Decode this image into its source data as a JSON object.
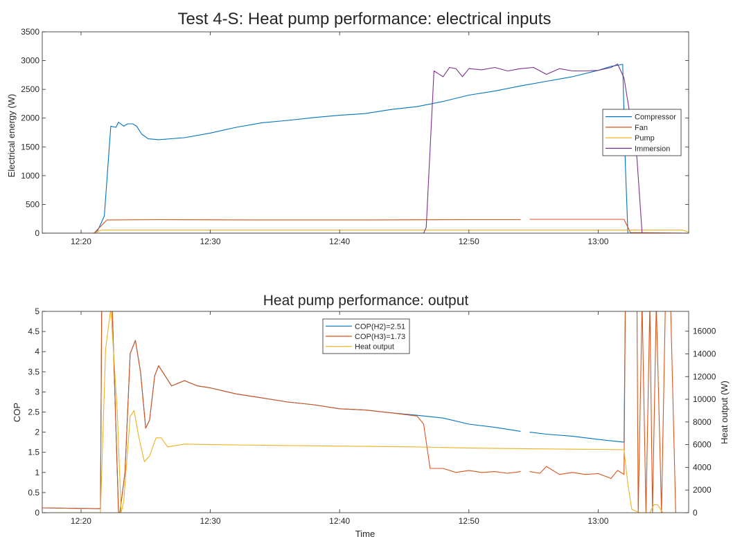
{
  "chart_data": [
    {
      "type": "line",
      "title": "Test 4-S: Heat pump performance: electrical inputs",
      "xlabel": "",
      "ylabel": "Electrical energy (W)",
      "x_unit": "time (HH:MM)",
      "xlim": [
        "12:17",
        "13:07"
      ],
      "ylim": [
        0,
        3500
      ],
      "xticks": [
        "12:20",
        "12:30",
        "12:40",
        "12:50",
        "13:00"
      ],
      "yticks": [
        0,
        500,
        1000,
        1500,
        2000,
        2500,
        3000,
        3500
      ],
      "grid": false,
      "legend_position": "right",
      "series": [
        {
          "name": "Compressor",
          "color": "#0072BD",
          "points": [
            [
              "12:17",
              0
            ],
            [
              "12:21",
              0
            ],
            [
              "12:21.3",
              50
            ],
            [
              "12:21.8",
              300
            ],
            [
              "12:22.3",
              1860
            ],
            [
              "12:22.7",
              1840
            ],
            [
              "12:22.9",
              1930
            ],
            [
              "12:23.3",
              1860
            ],
            [
              "12:23.6",
              1900
            ],
            [
              "12:24",
              1900
            ],
            [
              "12:24.3",
              1860
            ],
            [
              "12:24.7",
              1720
            ],
            [
              "12:25.2",
              1640
            ],
            [
              "12:26",
              1625
            ],
            [
              "12:28",
              1660
            ],
            [
              "12:30",
              1740
            ],
            [
              "12:32",
              1840
            ],
            [
              "12:34",
              1920
            ],
            [
              "12:36",
              1960
            ],
            [
              "12:38",
              2010
            ],
            [
              "12:40",
              2050
            ],
            [
              "12:42",
              2080
            ],
            [
              "12:44",
              2150
            ],
            [
              "12:46",
              2200
            ],
            [
              "12:48",
              2290
            ],
            [
              "12:50",
              2400
            ],
            [
              "12:52",
              2470
            ],
            [
              "12:54",
              2560
            ],
            [
              "12:56",
              2640
            ],
            [
              "12:58",
              2720
            ],
            [
              "13:00",
              2830
            ],
            [
              "13:01",
              2900
            ],
            [
              "13:01.9",
              2935
            ],
            [
              "13:02.1",
              1200
            ],
            [
              "13:02.3",
              0
            ],
            [
              "13:07",
              0
            ]
          ]
        },
        {
          "name": "Fan",
          "color": "#D95319",
          "points": [
            [
              "12:17",
              0
            ],
            [
              "12:21",
              0
            ],
            [
              "12:22",
              230
            ],
            [
              "12:26",
              235
            ],
            [
              "12:34",
              230
            ],
            [
              "12:42",
              230
            ],
            [
              "12:50",
              235
            ],
            [
              "12:54",
              235
            ],
            [
              "12:54.3",
              null
            ],
            [
              "12:54.7",
              240
            ],
            [
              "13:02",
              240
            ],
            [
              "13:02.5",
              10
            ],
            [
              "13:07",
              0
            ]
          ]
        },
        {
          "name": "Pump",
          "color": "#EDB120",
          "points": [
            [
              "12:17",
              0
            ],
            [
              "12:21",
              0
            ],
            [
              "12:21.6",
              55
            ],
            [
              "13:00",
              55
            ],
            [
              "13:06.5",
              55
            ],
            [
              "13:07",
              20
            ]
          ]
        },
        {
          "name": "Immersion",
          "color": "#7E2F8E",
          "points": [
            [
              "12:17",
              0
            ],
            [
              "12:46.5",
              0
            ],
            [
              "12:46.7",
              100
            ],
            [
              "12:47.3",
              2820
            ],
            [
              "12:48",
              2720
            ],
            [
              "12:48.5",
              2880
            ],
            [
              "12:49",
              2860
            ],
            [
              "12:49.5",
              2720
            ],
            [
              "12:50",
              2860
            ],
            [
              "12:51",
              2840
            ],
            [
              "12:52",
              2880
            ],
            [
              "12:53",
              2820
            ],
            [
              "12:54",
              2860
            ],
            [
              "12:55",
              2880
            ],
            [
              "12:56",
              2760
            ],
            [
              "12:57",
              2860
            ],
            [
              "12:58",
              2820
            ],
            [
              "12:59",
              2820
            ],
            [
              "13:00",
              2830
            ],
            [
              "13:01",
              2880
            ],
            [
              "13:01.5",
              2940
            ],
            [
              "13:02",
              2700
            ],
            [
              "13:03",
              1300
            ],
            [
              "13:03.4",
              0
            ],
            [
              "13:07",
              0
            ]
          ]
        }
      ]
    },
    {
      "type": "line",
      "title": "Heat pump performance: output",
      "xlabel": "Time",
      "ylabel": "COP",
      "y2label": "Heat output (W)",
      "x_unit": "time (HH:MM)",
      "xlim": [
        "12:17",
        "13:07"
      ],
      "ylim": [
        0,
        5
      ],
      "y2lim": [
        0,
        17750
      ],
      "xticks": [
        "12:20",
        "12:30",
        "12:40",
        "12:50",
        "13:00"
      ],
      "yticks": [
        0,
        0.5,
        1,
        1.5,
        2,
        2.5,
        3,
        3.5,
        4,
        4.5,
        5
      ],
      "y2ticks": [
        0,
        2000,
        4000,
        6000,
        8000,
        10000,
        12000,
        14000,
        16000
      ],
      "grid": false,
      "legend_position": "top-center",
      "series": [
        {
          "name": "COP(H2)=2.51",
          "color": "#0072BD",
          "axis": "left",
          "points": [
            [
              "12:17",
              0.12
            ],
            [
              "12:21.5",
              0.1
            ],
            [
              "12:21.6",
              5.2
            ],
            [
              "12:22.4",
              5.2
            ],
            [
              "12:22.9",
              0
            ],
            [
              "12:23",
              0
            ],
            [
              "12:23.4",
              1.0
            ],
            [
              "12:23.8",
              3.95
            ],
            [
              "12:24.2",
              4.28
            ],
            [
              "12:24.6",
              3.5
            ],
            [
              "12:25",
              2.1
            ],
            [
              "12:25.3",
              2.3
            ],
            [
              "12:25.7",
              3.4
            ],
            [
              "12:26",
              3.65
            ],
            [
              "12:26.5",
              3.4
            ],
            [
              "12:27",
              3.15
            ],
            [
              "12:28",
              3.28
            ],
            [
              "12:29",
              3.15
            ],
            [
              "12:30",
              3.1
            ],
            [
              "12:32",
              2.95
            ],
            [
              "12:34",
              2.85
            ],
            [
              "12:36",
              2.75
            ],
            [
              "12:38",
              2.68
            ],
            [
              "12:40",
              2.58
            ],
            [
              "12:42",
              2.55
            ],
            [
              "12:44",
              2.48
            ],
            [
              "12:46",
              2.42
            ],
            [
              "12:48",
              2.35
            ],
            [
              "12:50",
              2.2
            ],
            [
              "12:52",
              2.12
            ],
            [
              "12:54",
              2.02
            ],
            [
              "12:54.3",
              null
            ],
            [
              "12:54.7",
              2.0
            ],
            [
              "12:56",
              1.95
            ],
            [
              "12:58",
              1.9
            ],
            [
              "13:00",
              1.82
            ],
            [
              "13:02",
              1.75
            ],
            [
              "13:02.1",
              5.2
            ],
            [
              "13:07",
              5.2
            ]
          ]
        },
        {
          "name": "COP(H3)=1.73",
          "color": "#D95319",
          "axis": "left",
          "points": [
            [
              "12:17",
              0.12
            ],
            [
              "12:21.5",
              0.1
            ],
            [
              "12:21.6",
              5.2
            ],
            [
              "12:22.4",
              5.2
            ],
            [
              "12:22.9",
              0
            ],
            [
              "12:23",
              0
            ],
            [
              "12:23.4",
              1.0
            ],
            [
              "12:23.8",
              3.95
            ],
            [
              "12:24.2",
              4.28
            ],
            [
              "12:24.6",
              3.5
            ],
            [
              "12:25",
              2.1
            ],
            [
              "12:25.3",
              2.3
            ],
            [
              "12:25.7",
              3.4
            ],
            [
              "12:26",
              3.65
            ],
            [
              "12:26.5",
              3.4
            ],
            [
              "12:27",
              3.15
            ],
            [
              "12:28",
              3.28
            ],
            [
              "12:29",
              3.15
            ],
            [
              "12:30",
              3.1
            ],
            [
              "12:32",
              2.95
            ],
            [
              "12:34",
              2.85
            ],
            [
              "12:36",
              2.75
            ],
            [
              "12:38",
              2.68
            ],
            [
              "12:40",
              2.58
            ],
            [
              "12:42",
              2.55
            ],
            [
              "12:44",
              2.48
            ],
            [
              "12:46",
              2.4
            ],
            [
              "12:46.5",
              2.2
            ],
            [
              "12:47",
              1.1
            ],
            [
              "12:48",
              1.1
            ],
            [
              "12:49",
              1.0
            ],
            [
              "12:50",
              1.05
            ],
            [
              "12:51",
              1.0
            ],
            [
              "12:52",
              1.02
            ],
            [
              "12:53",
              0.98
            ],
            [
              "12:54",
              1.02
            ],
            [
              "12:54.3",
              null
            ],
            [
              "12:54.7",
              1.02
            ],
            [
              "12:55.5",
              0.98
            ],
            [
              "12:56",
              1.15
            ],
            [
              "12:57",
              0.95
            ],
            [
              "12:58",
              1.0
            ],
            [
              "12:59",
              0.95
            ],
            [
              "13:00",
              0.97
            ],
            [
              "13:01",
              0.85
            ],
            [
              "13:01.5",
              1.05
            ],
            [
              "13:02",
              0.95
            ],
            [
              "13:02.1",
              5.2
            ],
            [
              "13:03",
              5.2
            ],
            [
              "13:03.1",
              0
            ],
            [
              "13:03.4",
              5.2
            ],
            [
              "13:03.7",
              0
            ],
            [
              "13:04",
              5.2
            ],
            [
              "13:04.2",
              0
            ],
            [
              "13:04.5",
              5.2
            ],
            [
              "13:04.9",
              0
            ],
            [
              "13:05.2",
              5.2
            ],
            [
              "13:05.6",
              5.2
            ],
            [
              "13:06",
              0
            ]
          ]
        },
        {
          "name": "Heat output",
          "color": "#EDB120",
          "axis": "right",
          "points": [
            [
              "12:17",
              0
            ],
            [
              "12:21.5",
              0
            ],
            [
              "12:21.9",
              14400
            ],
            [
              "12:22.3",
              18000
            ],
            [
              "12:22.8",
              9000
            ],
            [
              "12:23.1",
              0
            ],
            [
              "12:23.3",
              1000
            ],
            [
              "12:23.8",
              8500
            ],
            [
              "12:24.1",
              9000
            ],
            [
              "12:24.5",
              6500
            ],
            [
              "12:24.9",
              4500
            ],
            [
              "12:25.3",
              5000
            ],
            [
              "12:25.8",
              6600
            ],
            [
              "12:26.2",
              6600
            ],
            [
              "12:26.7",
              5800
            ],
            [
              "12:27.2",
              5900
            ],
            [
              "12:28",
              6050
            ],
            [
              "12:30",
              6000
            ],
            [
              "12:34",
              5950
            ],
            [
              "12:38",
              5900
            ],
            [
              "12:42",
              5850
            ],
            [
              "12:46",
              5800
            ],
            [
              "12:48",
              5750
            ],
            [
              "12:50",
              5700
            ],
            [
              "12:54",
              5650
            ],
            [
              "12:58",
              5600
            ],
            [
              "13:00",
              5580
            ],
            [
              "13:02",
              5550
            ],
            [
              "13:02.3",
              2500
            ],
            [
              "13:02.6",
              300
            ],
            [
              "13:03.2",
              0
            ],
            [
              "13:04",
              0
            ],
            [
              "13:04.3",
              700
            ],
            [
              "13:04.6",
              700
            ],
            [
              "13:05",
              0
            ],
            [
              "13:07",
              0
            ]
          ]
        }
      ]
    }
  ]
}
